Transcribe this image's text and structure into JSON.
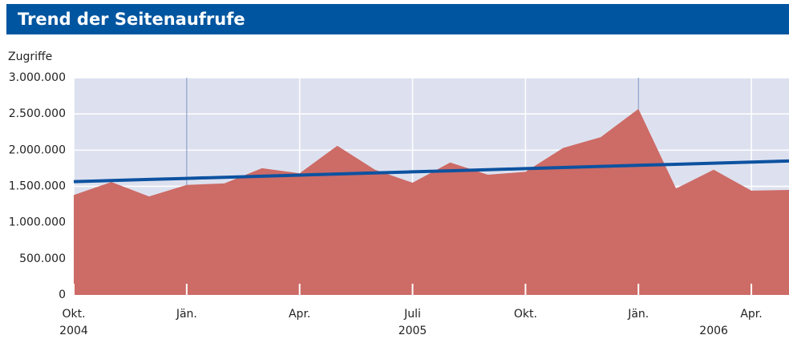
{
  "chart_data": {
    "type": "area",
    "title": "Trend der Seitenaufrufe",
    "y_label": "Zugriffe",
    "categories": [
      "Okt.",
      null,
      null,
      "Jän.",
      null,
      null,
      "Apr.",
      null,
      null,
      "Juli",
      null,
      null,
      "Okt.",
      null,
      null,
      "Jän.",
      null,
      null,
      "Apr.",
      null
    ],
    "years": [
      2004,
      null,
      null,
      null,
      null,
      null,
      null,
      null,
      null,
      2005,
      null,
      null,
      null,
      null,
      null,
      null,
      null,
      2006,
      null,
      null
    ],
    "series": [
      {
        "name": "Zugriffe",
        "color": "#cd6b66",
        "values": [
          1380000,
          1560000,
          1360000,
          1520000,
          1540000,
          1750000,
          1680000,
          2060000,
          1730000,
          1550000,
          1830000,
          1660000,
          1700000,
          2030000,
          2180000,
          2570000,
          1470000,
          1730000,
          1440000,
          1450000
        ]
      },
      {
        "name": "Trend",
        "color": "#0d52a0",
        "type": "line",
        "values": [
          1565000,
          1580000,
          1595000,
          1610000,
          1625000,
          1640000,
          1655000,
          1670000,
          1685000,
          1700000,
          1715000,
          1730000,
          1745000,
          1760000,
          1775000,
          1790000,
          1805000,
          1820000,
          1835000,
          1850000
        ]
      }
    ],
    "ylim": [
      0,
      3000000
    ],
    "yticks": [
      0,
      {
        "value": 500000,
        "label": "500.000"
      },
      {
        "value": 1000000,
        "label": "1.000.000"
      },
      {
        "value": 1500000,
        "label": "1.500.000"
      },
      {
        "value": 2000000,
        "label": "2.000.000"
      },
      {
        "value": 2500000,
        "label": "2.500.000"
      },
      {
        "value": 3000000,
        "label": "3.000.000"
      }
    ],
    "grid": true
  }
}
